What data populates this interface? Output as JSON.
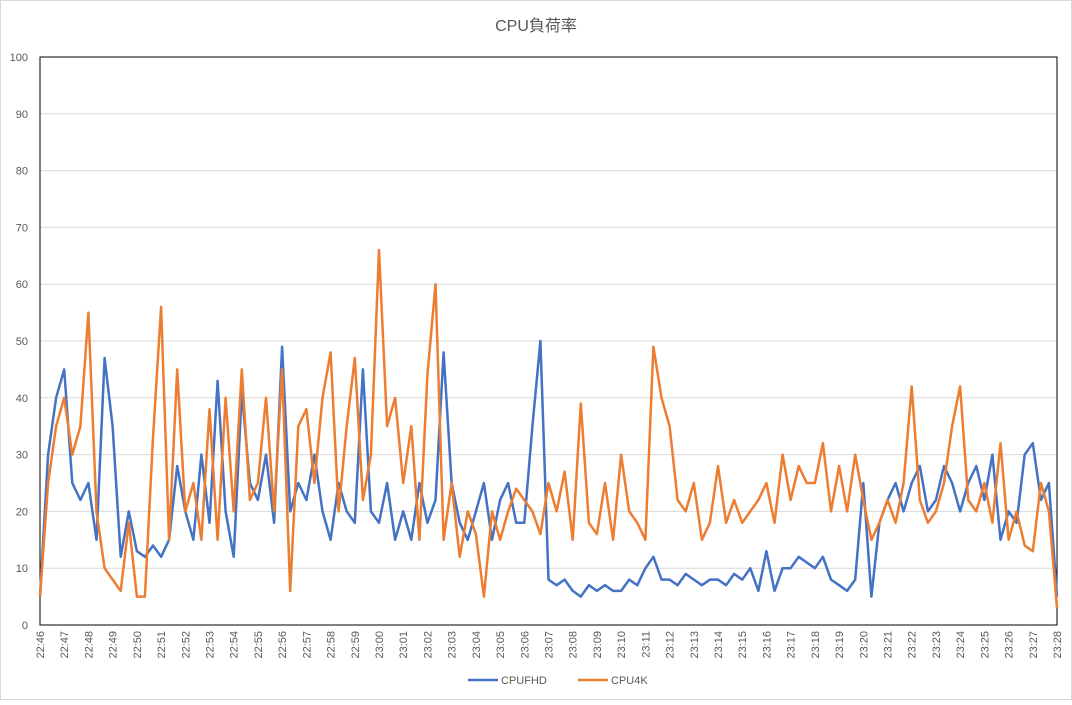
{
  "chart_data": {
    "type": "line",
    "title": "CPU負荷率",
    "categories": [
      "22:46",
      null,
      null,
      "22:47",
      null,
      null,
      "22:48",
      null,
      null,
      "22:49",
      null,
      null,
      "22:50",
      null,
      null,
      "22:51",
      null,
      null,
      "22:52",
      null,
      null,
      "22:53",
      null,
      null,
      "22:54",
      null,
      null,
      "22:55",
      null,
      null,
      "22:56",
      null,
      null,
      "22:57",
      null,
      null,
      "22:58",
      null,
      null,
      "22:59",
      null,
      null,
      "23:00",
      null,
      null,
      "23:01",
      null,
      null,
      "23:02",
      null,
      null,
      "23:03",
      null,
      null,
      "23:04",
      null,
      null,
      "23:05",
      null,
      null,
      "23:06",
      null,
      null,
      "23:07",
      null,
      null,
      "23:08",
      null,
      null,
      "23:09",
      null,
      null,
      "23:10",
      null,
      null,
      "23:11",
      null,
      null,
      "23:12",
      null,
      null,
      "23:13",
      null,
      null,
      "23:14",
      null,
      null,
      "23:15",
      null,
      null,
      "23:16",
      null,
      null,
      "23:17",
      null,
      null,
      "23:18",
      null,
      null,
      "23:19",
      null,
      null,
      "23:20",
      null,
      null,
      "23:21",
      null,
      null,
      "23:22",
      null,
      null,
      "23:23",
      null,
      null,
      "23:24",
      null,
      null,
      "23:25",
      null,
      null,
      "23:26",
      null,
      null,
      "23:27",
      null,
      null,
      "23:28"
    ],
    "series": [
      {
        "name": "CPUFHD",
        "color": "#4472c4",
        "values": [
          5,
          30,
          40,
          45,
          25,
          22,
          25,
          15,
          47,
          35,
          12,
          20,
          13,
          12,
          14,
          12,
          15,
          28,
          20,
          15,
          30,
          18,
          43,
          20,
          12,
          41,
          25,
          22,
          30,
          18,
          49,
          20,
          25,
          22,
          30,
          20,
          15,
          25,
          20,
          18,
          45,
          20,
          18,
          25,
          15,
          20,
          15,
          25,
          18,
          22,
          48,
          25,
          18,
          15,
          20,
          25,
          15,
          22,
          25,
          18,
          18,
          35,
          50,
          8,
          7,
          8,
          6,
          5,
          7,
          6,
          7,
          6,
          6,
          8,
          7,
          10,
          12,
          8,
          8,
          7,
          9,
          8,
          7,
          8,
          8,
          7,
          9,
          8,
          10,
          6,
          13,
          6,
          10,
          10,
          12,
          11,
          10,
          12,
          8,
          7,
          6,
          8,
          25,
          5,
          18,
          22,
          25,
          20,
          25,
          28,
          20,
          22,
          28,
          25,
          20,
          25,
          28,
          22,
          30,
          15,
          20,
          18,
          30,
          32,
          22,
          25,
          5
        ]
      },
      {
        "name": "CPU4K",
        "color": "#ed7d31",
        "values": [
          5,
          25,
          35,
          40,
          30,
          35,
          55,
          20,
          10,
          8,
          6,
          18,
          5,
          5,
          33,
          56,
          15,
          45,
          20,
          25,
          15,
          38,
          15,
          40,
          20,
          45,
          22,
          25,
          40,
          20,
          45,
          6,
          35,
          38,
          25,
          40,
          48,
          20,
          35,
          47,
          22,
          30,
          66,
          35,
          40,
          25,
          35,
          15,
          44,
          60,
          15,
          25,
          12,
          20,
          16,
          5,
          20,
          15,
          20,
          24,
          22,
          20,
          16,
          25,
          20,
          27,
          15,
          39,
          18,
          16,
          25,
          15,
          30,
          20,
          18,
          15,
          49,
          40,
          35,
          22,
          20,
          25,
          15,
          18,
          28,
          18,
          22,
          18,
          20,
          22,
          25,
          18,
          30,
          22,
          28,
          25,
          25,
          32,
          20,
          28,
          20,
          30,
          22,
          15,
          18,
          22,
          18,
          25,
          42,
          22,
          18,
          20,
          25,
          35,
          42,
          22,
          20,
          25,
          18,
          32,
          15,
          20,
          14,
          13,
          25,
          20,
          3
        ]
      }
    ],
    "ylim": [
      0,
      100
    ],
    "yticks": [
      0,
      10,
      20,
      30,
      40,
      50,
      60,
      70,
      80,
      90,
      100
    ],
    "grid": true,
    "legend": "bottom"
  }
}
